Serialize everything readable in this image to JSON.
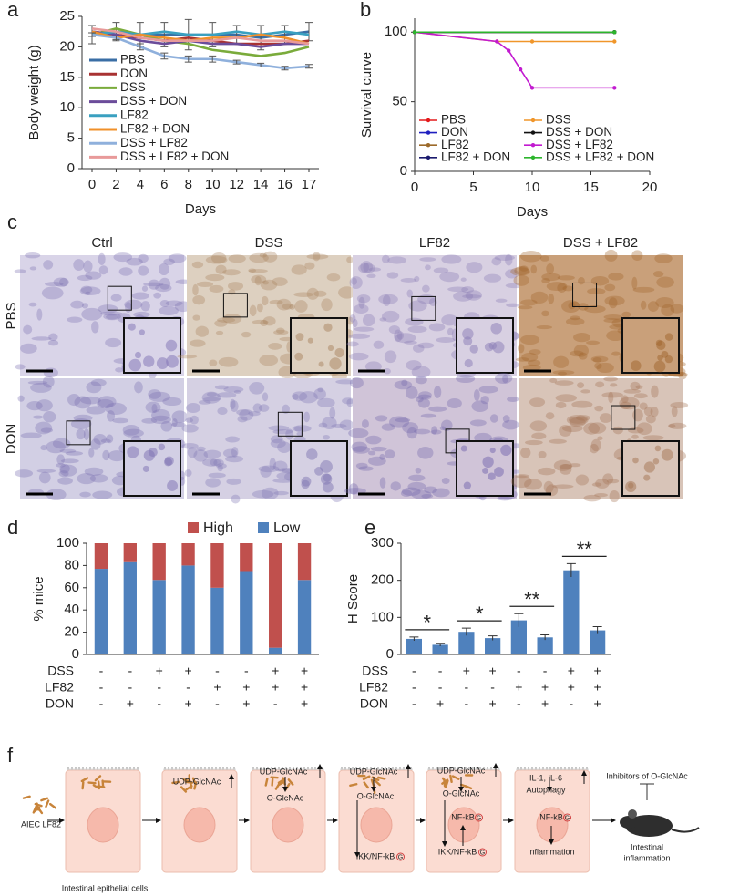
{
  "chart_data": [
    {
      "label": "a",
      "type": "line",
      "ylabel": "Body weight (g)",
      "xlabel": "Days",
      "categories": [
        "0",
        "2",
        "4",
        "6",
        "8",
        "10",
        "12",
        "14",
        "16",
        "17"
      ],
      "ylim": [
        0,
        25
      ],
      "yticks": [
        0,
        5,
        10,
        15,
        20,
        25
      ],
      "legend_columns": 1,
      "series": [
        {
          "name": "PBS",
          "color": "#3a6ea5",
          "values": [
            22,
            22.5,
            22,
            22,
            22,
            22,
            22,
            21.5,
            22,
            22.5
          ],
          "errors": [
            1.5,
            1.5,
            2,
            2,
            2.5,
            2,
            1.5,
            2,
            1.5,
            1.5
          ]
        },
        {
          "name": "DON",
          "color": "#a83232",
          "values": [
            22.5,
            22,
            21.5,
            21,
            21.5,
            21,
            20.5,
            20.5,
            20.5,
            21
          ]
        },
        {
          "name": "DSS",
          "color": "#7aab3b",
          "values": [
            22,
            23,
            22,
            21,
            20.5,
            19.5,
            19,
            18.5,
            19,
            20
          ]
        },
        {
          "name": "DSS + DON",
          "color": "#6b4c9a",
          "values": [
            22.5,
            22,
            21,
            20.5,
            21,
            20.5,
            20.5,
            20,
            20.5,
            20.5
          ]
        },
        {
          "name": "LF82",
          "color": "#3aa0c0",
          "values": [
            22,
            22.5,
            22,
            22.5,
            22,
            22,
            22.5,
            22,
            22.5,
            22
          ]
        },
        {
          "name": "LF82 + DON",
          "color": "#f0902a",
          "values": [
            22.5,
            21.5,
            22,
            21.5,
            21,
            21.5,
            21.5,
            22,
            21.5,
            20.5
          ]
        },
        {
          "name": "DSS + LF82",
          "color": "#8fb0dc",
          "values": [
            22,
            21.5,
            20,
            18.5,
            18,
            18,
            17.5,
            17,
            16.5,
            16.8
          ],
          "errors": [
            0.3,
            0.3,
            0.5,
            0.5,
            0.5,
            0.5,
            0.3,
            0.3,
            0.3,
            0.3
          ]
        },
        {
          "name": "DSS + LF82 + DON",
          "color": "#e89a9a",
          "values": [
            23,
            22.5,
            21.5,
            21,
            21,
            21,
            21.5,
            21,
            21,
            20.5
          ]
        }
      ]
    },
    {
      "label": "b",
      "type": "line",
      "ylabel": "Survival curve",
      "xlabel": "Days",
      "xlim": [
        0,
        20
      ],
      "xticks": [
        0,
        5,
        10,
        15,
        20
      ],
      "ylim": [
        0,
        110
      ],
      "yticks": [
        0,
        50,
        100
      ],
      "legend_columns": 2,
      "series": [
        {
          "name": "PBS",
          "color": "#e41a1c",
          "x": [
            0,
            17
          ],
          "values": [
            100,
            100
          ]
        },
        {
          "name": "DON",
          "color": "#1f1fbf",
          "x": [
            0,
            17
          ],
          "values": [
            100,
            100
          ]
        },
        {
          "name": "LF82",
          "color": "#9c6a2a",
          "x": [
            0,
            17
          ],
          "values": [
            100,
            100
          ]
        },
        {
          "name": "LF82 + DON",
          "color": "#1a1a6e",
          "x": [
            0,
            17
          ],
          "values": [
            100,
            100
          ]
        },
        {
          "name": "DSS",
          "color": "#f0962a",
          "x": [
            0,
            7,
            10,
            17
          ],
          "values": [
            100,
            93.3,
            93.3,
            93.3
          ]
        },
        {
          "name": "DSS + DON",
          "color": "#111111",
          "x": [
            0,
            17
          ],
          "values": [
            100,
            100
          ]
        },
        {
          "name": "DSS + LF82",
          "color": "#c21bd0",
          "x": [
            0,
            7,
            8,
            9,
            10,
            17
          ],
          "values": [
            100,
            93.3,
            86.7,
            73.3,
            60,
            60
          ]
        },
        {
          "name": "DSS + LF82 + DON",
          "color": "#2cb52c",
          "x": [
            0,
            17
          ],
          "values": [
            100,
            100
          ]
        }
      ]
    },
    {
      "label": "d",
      "type": "stacked_bar",
      "ylabel": "% mice",
      "ylim": [
        0,
        100
      ],
      "yticks": [
        0,
        20,
        40,
        60,
        80,
        100
      ],
      "series": [
        {
          "name": "Low",
          "color": "#4f81bd",
          "values": [
            77,
            83,
            67,
            80,
            60,
            75,
            6,
            67
          ]
        },
        {
          "name": "High",
          "color": "#c0504d",
          "values": [
            23,
            17,
            33,
            20,
            40,
            25,
            94,
            33
          ]
        }
      ],
      "conditions": [
        {
          "name": "DSS",
          "signs": [
            "-",
            "-",
            "+",
            "+",
            "-",
            "-",
            "+",
            "+"
          ]
        },
        {
          "name": "LF82",
          "signs": [
            "-",
            "-",
            "-",
            "-",
            "+",
            "+",
            "+",
            "+"
          ]
        },
        {
          "name": "DON",
          "signs": [
            "-",
            "+",
            "-",
            "+",
            "-",
            "+",
            "-",
            "+"
          ]
        }
      ]
    },
    {
      "label": "e",
      "type": "bar",
      "ylabel": "H Score",
      "ylim": [
        0,
        300
      ],
      "yticks": [
        0,
        100,
        200,
        300
      ],
      "color": "#4f81bd",
      "values": [
        42,
        26,
        61,
        44,
        92,
        46,
        227,
        65
      ],
      "errors": [
        5,
        4,
        10,
        6,
        18,
        7,
        18,
        10
      ],
      "annotations": [
        {
          "text": "*",
          "between": [
            0,
            1
          ]
        },
        {
          "text": "*",
          "between": [
            2,
            3
          ]
        },
        {
          "text": "**",
          "between": [
            4,
            5
          ]
        },
        {
          "text": "**",
          "between": [
            6,
            7
          ]
        }
      ],
      "conditions": [
        {
          "name": "DSS",
          "signs": [
            "-",
            "-",
            "+",
            "+",
            "-",
            "-",
            "+",
            "+"
          ]
        },
        {
          "name": "LF82",
          "signs": [
            "-",
            "-",
            "-",
            "-",
            "+",
            "+",
            "+",
            "+"
          ]
        },
        {
          "name": "DON",
          "signs": [
            "-",
            "+",
            "-",
            "+",
            "-",
            "+",
            "-",
            "+"
          ]
        }
      ]
    }
  ],
  "panel_c": {
    "label": "c",
    "columns": [
      "Ctrl",
      "DSS",
      "LF82",
      "DSS + LF82"
    ],
    "rows": [
      "PBS",
      "DON"
    ]
  },
  "panel_f": {
    "label": "f",
    "source": "AIEC LF82",
    "cells_label": "Intestinal epithelial cells",
    "steps": [
      {
        "items": [
          {
            "text": "UDP-GlcNAc"
          }
        ]
      },
      {
        "items": [
          {
            "text": "UDP-GlcNAc"
          },
          {
            "text": "O-GlcNAc"
          }
        ]
      },
      {
        "items": [
          {
            "text": "UDP-GlcNAc"
          },
          {
            "text": "O-GlcNAc"
          },
          {
            "text": "IKK/NF-kB",
            "mark": "G"
          }
        ]
      },
      {
        "items": [
          {
            "text": "UDP-GlcNAc"
          },
          {
            "text": "O-GlcNAc"
          },
          {
            "text": "NF-kB",
            "mark": "G"
          },
          {
            "text": "IKK/NF-kB",
            "mark": "G"
          }
        ]
      },
      {
        "items": [
          {
            "text": "IL-1, IL-6"
          },
          {
            "text": "Autophagy"
          },
          {
            "text": "NF-kB",
            "mark": "G"
          },
          {
            "text": "inflammation"
          }
        ]
      }
    ],
    "inhibitor": "Inhibitors of O-GlcNAc",
    "outcome": [
      "Intestinal",
      "inflammation"
    ]
  }
}
